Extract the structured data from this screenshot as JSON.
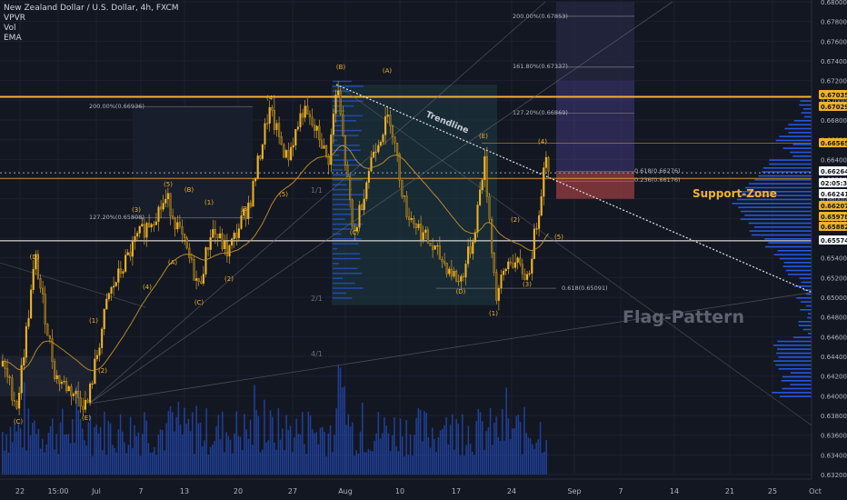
{
  "header": {
    "symbol": "New Zealand Dollar / U.S. Dollar, 4h, FXCM",
    "indicators": [
      "VPVR",
      "Vol",
      "EMA"
    ]
  },
  "chart_data": {
    "type": "candlestick",
    "pair": "NZDUSD",
    "timeframe": "4h",
    "ylim": [
      0.632,
      0.68
    ],
    "y_ticks": [
      0.632,
      0.634,
      0.636,
      0.638,
      0.64,
      0.642,
      0.644,
      0.646,
      0.648,
      0.65,
      0.652,
      0.654,
      0.656,
      0.658,
      0.66,
      0.662,
      0.664,
      0.666,
      0.668,
      0.67,
      0.672,
      0.674,
      0.676,
      0.678,
      0.68
    ],
    "x_ticks": [
      "22",
      "15:00",
      "Jul",
      "7",
      "13",
      "20",
      "27",
      "Aug",
      "10",
      "17",
      "24",
      "Sep",
      "7",
      "14",
      "21",
      "25",
      "Oct"
    ],
    "price_markers": [
      {
        "value": "0.67035",
        "color": "#f0b429"
      },
      {
        "value": "0.67029",
        "color": "#f0b429"
      },
      {
        "value": "0.66565",
        "color": "#f0b429"
      },
      {
        "value": "0.66264",
        "color": "#ffffff"
      },
      {
        "value": "02:05:39",
        "color": "#ffffff"
      },
      {
        "value": "0.66241",
        "color": "#ffffff"
      },
      {
        "value": "0.66207",
        "color": "#f0b429"
      },
      {
        "value": "0.65978",
        "color": "#f0b429"
      },
      {
        "value": "0.65882",
        "color": "#f0b429"
      },
      {
        "value": "0.65574",
        "color": "#ffffff"
      }
    ],
    "levels": [
      {
        "name": "resistance",
        "value": 0.67035,
        "color": "#f0b429"
      },
      {
        "name": "support",
        "value": 0.65574,
        "color": "#ffffff"
      },
      {
        "name": "support-zone-line",
        "value": 0.66207,
        "color": "#f0b429"
      }
    ],
    "fib_labels": [
      {
        "text": "200.00%(0.67853)",
        "value": 0.67853
      },
      {
        "text": "161.80%(0.67337)",
        "value": 0.67337
      },
      {
        "text": "127.20%(0.66869)",
        "value": 0.66869
      },
      {
        "text": "200.00%(0.66936)",
        "value": 0.66936
      },
      {
        "text": "127.20%(0.65808)",
        "value": 0.65808
      },
      {
        "text": "0.618(0.66276)",
        "value": 0.66276
      },
      {
        "text": "0.236(0.66176)",
        "value": 0.66176
      },
      {
        "text": "0.618(0.65091)",
        "value": 0.65091
      }
    ],
    "wave_labels": [
      "(D)",
      "(C)",
      "(E)",
      "(1)",
      "(2)",
      "(3)",
      "(4)",
      "(5)",
      "(A)",
      "(B)",
      "(C)",
      "(1)",
      "(2)",
      "(3)",
      "(4)",
      "(5)",
      "(B)",
      "(A)",
      "(C)",
      "(D)",
      "(E)",
      "(1)",
      "(2)",
      "(3)",
      "(4)",
      "(5)"
    ],
    "gann_labels": [
      "1/1",
      "2/1",
      "4/1"
    ],
    "annotations": {
      "trendline": "Trendline",
      "support_zone": "Support-Zone",
      "pattern": "Flag-Pattern"
    },
    "colors": {
      "background": "#131722",
      "candle": "#f0b429",
      "volume": "#2962ff",
      "ema": "#c8922a",
      "support_zone": "#c94a4a",
      "target_box": "#5a4aa8"
    }
  }
}
